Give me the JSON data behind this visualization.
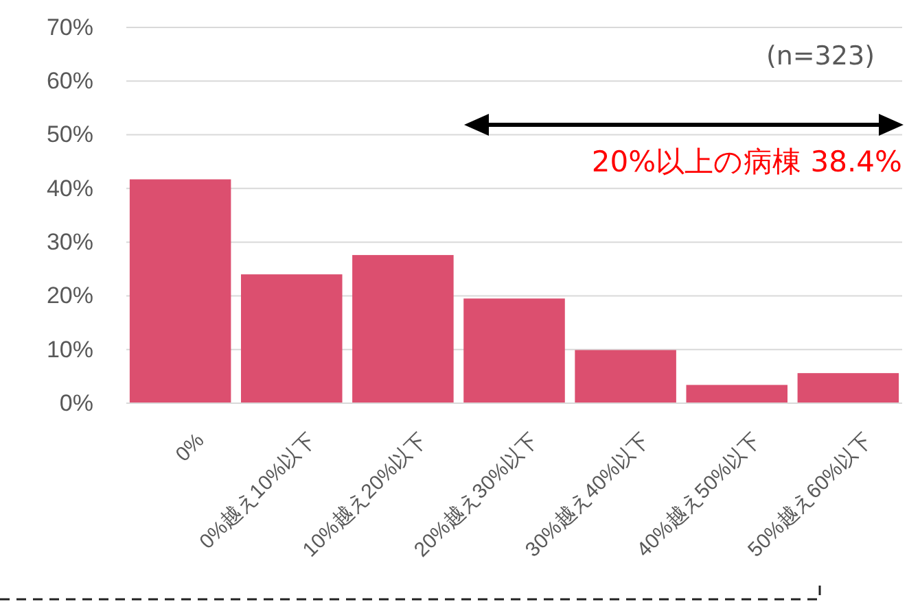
{
  "chart_data": {
    "type": "bar",
    "categories": [
      "0%",
      "0%越え10%以下",
      "10%越え20%以下",
      "20%越え30%以下",
      "30%越え40%以下",
      "40%越え50%以下",
      "50%越え60%以下"
    ],
    "values": [
      41.7,
      24.0,
      27.6,
      19.5,
      9.9,
      3.4,
      5.6
    ],
    "color": "#dc4f6f",
    "ylim": [
      0,
      70
    ],
    "yticks": [
      {
        "value": 0,
        "label": "0%"
      },
      {
        "value": 10,
        "label": "10%"
      },
      {
        "value": 20,
        "label": "20%"
      },
      {
        "value": 30,
        "label": "30%"
      },
      {
        "value": 40,
        "label": "40%"
      },
      {
        "value": 50,
        "label": "50%"
      },
      {
        "value": 60,
        "label": "60%"
      },
      {
        "value": 70,
        "label": "70%"
      }
    ],
    "grid": "y",
    "annotations": [
      "(n=323)",
      "20%以上の病棟 38.4%"
    ]
  }
}
